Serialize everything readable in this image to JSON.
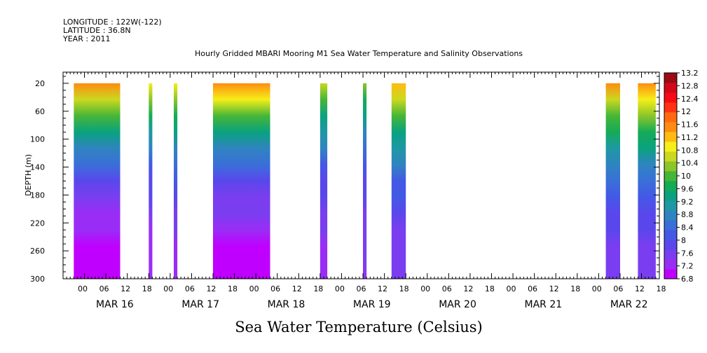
{
  "header": {
    "longitude": "LONGITUDE : 122W(-122)",
    "latitude": "LATITUDE : 36.8N",
    "year": "YEAR : 2011"
  },
  "chart_data": {
    "type": "heatmap",
    "title": "Hourly Gridded MBARI Mooring M1 Sea Water Temperature and Salinity Observations",
    "xlabel": "Sea Water Temperature (Celsius)",
    "ylabel": "DEPTH (m)",
    "ylim": [
      300,
      4
    ],
    "y_ticks": [
      "20",
      "60",
      "100",
      "140",
      "180",
      "220",
      "260",
      "300"
    ],
    "x_hour_ticks": [
      "00",
      "06",
      "12",
      "18",
      "00",
      "06",
      "12",
      "18",
      "00",
      "06",
      "12",
      "18",
      "00",
      "06",
      "12",
      "18",
      "00",
      "06",
      "12",
      "18",
      "00",
      "06",
      "12",
      "18",
      "00",
      "06",
      "12",
      "18"
    ],
    "x_day_labels": [
      "MAR 16",
      "MAR 17",
      "MAR 18",
      "MAR 19",
      "MAR 20",
      "MAR 21",
      "MAR 22"
    ],
    "x_range": [
      "2011-03-16T00:00",
      "2011-03-22T23:00"
    ],
    "colorbar": {
      "labels": [
        "13.2",
        "12.8",
        "12.4",
        "12",
        "11.6",
        "11.2",
        "10.8",
        "10.4",
        "10",
        "9.6",
        "9.2",
        "8.8",
        "8.4",
        "8",
        "7.6",
        "7.2",
        "6.8"
      ],
      "range": [
        6.8,
        13.2
      ],
      "colors": [
        "#bf00ff",
        "#9a2df5",
        "#7a3ef0",
        "#5a47ec",
        "#4458e6",
        "#3a6fd8",
        "#2f84c0",
        "#1e98a4",
        "#0aa27f",
        "#14ab57",
        "#46b637",
        "#8bc52a",
        "#cbd820",
        "#f5ee18",
        "#ffbb12",
        "#ff8c10",
        "#ff6a10",
        "#ff3214",
        "#f50c14",
        "#d3081a",
        "#9c0a14"
      ]
    },
    "data_segments": [
      {
        "start": "2011-03-16T03:00",
        "end": "2011-03-16T16:00",
        "surface_c": 11.4,
        "deep_c": 7.0
      },
      {
        "start": "2011-03-17T00:00",
        "end": "2011-03-17T01:00",
        "surface_c": 10.8,
        "deep_c": 7.2
      },
      {
        "start": "2011-03-17T07:00",
        "end": "2011-03-17T08:00",
        "surface_c": 11.0,
        "deep_c": 7.3
      },
      {
        "start": "2011-03-17T18:00",
        "end": "2011-03-18T10:00",
        "surface_c": 11.6,
        "deep_c": 7.0
      },
      {
        "start": "2011-03-19T00:00",
        "end": "2011-03-19T02:00",
        "surface_c": 10.6,
        "deep_c": 7.3
      },
      {
        "start": "2011-03-19T12:00",
        "end": "2011-03-19T13:00",
        "surface_c": 10.2,
        "deep_c": 7.4
      },
      {
        "start": "2011-03-19T20:00",
        "end": "2011-03-20T00:00",
        "surface_c": 11.2,
        "deep_c": 7.5
      },
      {
        "start": "2011-03-22T08:00",
        "end": "2011-03-22T12:00",
        "surface_c": 11.4,
        "deep_c": 7.6
      },
      {
        "start": "2011-03-22T17:00",
        "end": "2011-03-22T22:00",
        "surface_c": 11.6,
        "deep_c": 7.6
      }
    ]
  }
}
